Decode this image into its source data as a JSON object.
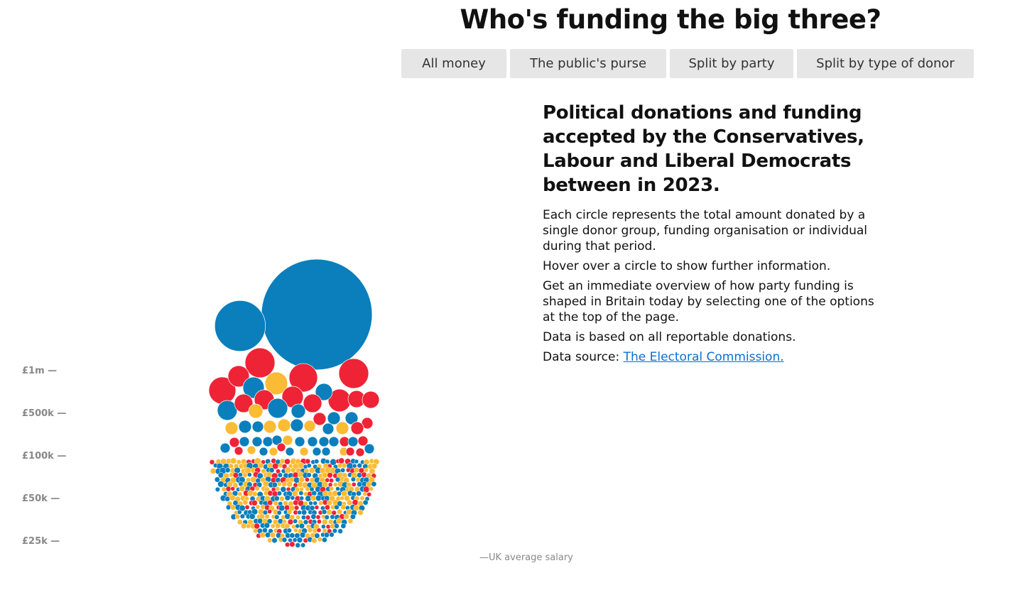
{
  "header": {
    "title": "Who's funding the big three?"
  },
  "buttons": [
    "All money",
    "The public's purse",
    "Split by party",
    "Split by type of donor"
  ],
  "info": {
    "heading": "Political donations and funding accepted by the Conservatives, Labour and Liberal Democrats between in 2023.",
    "p1": "Each circle represents the total amount donated by a single donor group, funding organisation or individual during that period.",
    "p2": "Hover over a circle to show further information.",
    "p3": "Get an immediate overview of how party funding is shaped in Britain today by selecting one of the options at the top of the page.",
    "p4": "Data is based on all reportable donations.",
    "p5_prefix": "Data source: ",
    "p5_link": "The Electoral Commission."
  },
  "chart_data": {
    "type": "bubble",
    "y_ticks": [
      "£1m —",
      "£500k —",
      "£100k —",
      "£50k —",
      "£25k —"
    ],
    "annotation": "—UK average salary",
    "colors": {
      "blue": "#0a7fbc",
      "red": "#ef2336",
      "yellow": "#fbbb34"
    },
    "circles": [
      {
        "c": "blue",
        "v": 12400000
      },
      {
        "c": "blue",
        "v": 2600000
      },
      {
        "c": "red",
        "v": 900000
      },
      {
        "c": "red",
        "v": 820000
      },
      {
        "c": "red",
        "v": 900000
      },
      {
        "c": "red",
        "v": 740000
      },
      {
        "c": "red",
        "v": 460000
      },
      {
        "c": "yellow",
        "v": 520000
      },
      {
        "c": "blue",
        "v": 460000
      },
      {
        "c": "red",
        "v": 400000
      },
      {
        "c": "red",
        "v": 460000
      },
      {
        "c": "red",
        "v": 520000
      },
      {
        "c": "blue",
        "v": 295000
      },
      {
        "c": "red",
        "v": 295000
      },
      {
        "c": "red",
        "v": 295000
      },
      {
        "c": "blue",
        "v": 400000
      },
      {
        "c": "red",
        "v": 345000
      },
      {
        "c": "blue",
        "v": 400000
      },
      {
        "c": "yellow",
        "v": 205000
      },
      {
        "c": "blue",
        "v": 205000
      },
      {
        "c": "red",
        "v": 345000
      },
      {
        "c": "red",
        "v": 165000
      },
      {
        "c": "blue",
        "v": 165000
      },
      {
        "c": "blue",
        "v": 165000
      },
      {
        "c": "red",
        "v": 130000
      },
      {
        "c": "red",
        "v": 165000
      },
      {
        "c": "yellow",
        "v": 165000
      },
      {
        "c": "blue",
        "v": 165000
      },
      {
        "c": "blue",
        "v": 130000
      },
      {
        "c": "yellow",
        "v": 165000
      },
      {
        "c": "yellow",
        "v": 165000
      },
      {
        "c": "blue",
        "v": 165000
      },
      {
        "c": "yellow",
        "v": 130000
      },
      {
        "c": "blue",
        "v": 130000
      },
      {
        "c": "yellow",
        "v": 165000
      },
      {
        "c": "blue",
        "v": 100000
      },
      {
        "c": "red",
        "v": 100000
      },
      {
        "c": "blue",
        "v": 100000
      },
      {
        "c": "blue",
        "v": 100000
      },
      {
        "c": "blue",
        "v": 100000
      },
      {
        "c": "blue",
        "v": 100000
      },
      {
        "c": "yellow",
        "v": 100000
      },
      {
        "c": "blue",
        "v": 100000
      },
      {
        "c": "blue",
        "v": 100000
      },
      {
        "c": "blue",
        "v": 100000
      },
      {
        "c": "blue",
        "v": 100000
      },
      {
        "c": "red",
        "v": 100000
      },
      {
        "c": "blue",
        "v": 100000
      },
      {
        "c": "red",
        "v": 100000
      },
      {
        "c": "red",
        "v": 73000
      },
      {
        "c": "yellow",
        "v": 73000
      },
      {
        "c": "blue",
        "v": 73000
      },
      {
        "c": "yellow",
        "v": 73000
      },
      {
        "c": "red",
        "v": 73000
      },
      {
        "c": "blue",
        "v": 73000
      },
      {
        "c": "yellow",
        "v": 73000
      },
      {
        "c": "blue",
        "v": 73000
      },
      {
        "c": "blue",
        "v": 73000
      },
      {
        "c": "yellow",
        "v": 73000
      },
      {
        "c": "red",
        "v": 73000
      },
      {
        "c": "blue",
        "v": 100000
      },
      {
        "c": "red",
        "v": 73000
      }
    ]
  }
}
